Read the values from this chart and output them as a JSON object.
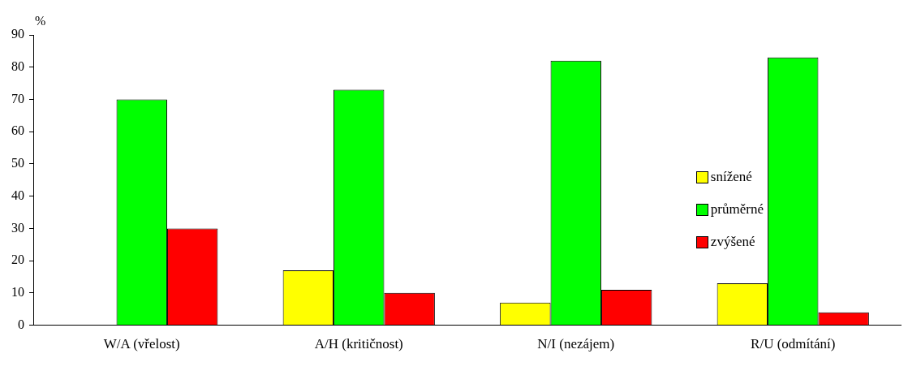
{
  "chart_data": {
    "type": "bar",
    "ylabel": "%",
    "categories": [
      "W/A (vřelost)",
      "A/H (kritičnost)",
      "N/I (nezájem)",
      "R/U (odmítání)"
    ],
    "series": [
      {
        "name": "snížené",
        "color": "#ffff00",
        "values": [
          0,
          17,
          7,
          13
        ]
      },
      {
        "name": "průměrné",
        "color": "#00ff00",
        "values": [
          70,
          73,
          82,
          83
        ]
      },
      {
        "name": "zvýšené",
        "color": "#ff0000",
        "values": [
          30,
          10,
          11,
          4
        ]
      }
    ],
    "ylim": [
      0,
      90
    ],
    "yticks": [
      0,
      10,
      20,
      30,
      40,
      50,
      60,
      70,
      80,
      90
    ],
    "grid": false,
    "legend": "right"
  }
}
